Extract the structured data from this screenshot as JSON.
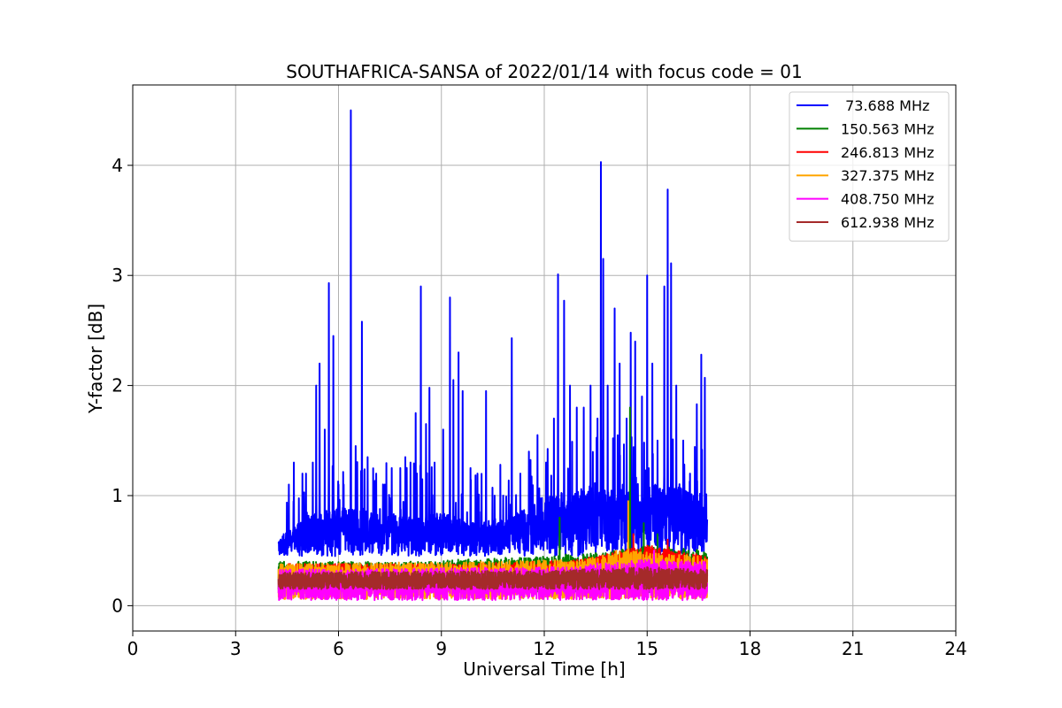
{
  "chart_data": {
    "type": "line",
    "title": "SOUTHAFRICA-SANSA of 2022/01/14 with focus code = 01",
    "xlabel": "Universal Time [h]",
    "ylabel": "Y-factor [dB]",
    "xlim": [
      0,
      24
    ],
    "ylim": [
      -0.23,
      4.73
    ],
    "xticks": [
      0,
      3,
      6,
      9,
      12,
      15,
      18,
      21,
      24
    ],
    "yticks": [
      0,
      1,
      2,
      3,
      4
    ],
    "xtick_labels": [
      "0",
      "3",
      "6",
      "9",
      "12",
      "15",
      "18",
      "21",
      "24"
    ],
    "ytick_labels": [
      "0",
      "1",
      "2",
      "3",
      "4"
    ],
    "grid": true,
    "legend_position": "top-right",
    "time_range_hours": [
      4.25,
      16.75
    ],
    "series": [
      {
        "name": " 73.688 MHz",
        "color": "#0000ff",
        "baseline_low": 0.45,
        "baseline_high": 1.05,
        "envelope": [
          [
            4.25,
            0.6
          ],
          [
            5,
            0.8
          ],
          [
            6,
            0.9
          ],
          [
            7,
            0.85
          ],
          [
            8,
            0.8
          ],
          [
            9,
            0.85
          ],
          [
            10,
            0.75
          ],
          [
            11,
            0.8
          ],
          [
            12,
            1.0
          ],
          [
            13,
            1.05
          ],
          [
            14,
            1.05
          ],
          [
            15,
            1.1
          ],
          [
            16,
            1.1
          ],
          [
            16.75,
            0.9
          ]
        ],
        "peaks": [
          [
            4.4,
            0.65
          ],
          [
            4.55,
            1.1
          ],
          [
            4.7,
            1.3
          ],
          [
            4.95,
            1.2
          ],
          [
            5.05,
            1.2
          ],
          [
            5.25,
            1.3
          ],
          [
            5.35,
            2.0
          ],
          [
            5.45,
            2.2
          ],
          [
            5.6,
            1.6
          ],
          [
            5.72,
            2.93
          ],
          [
            5.85,
            2.45
          ],
          [
            6.0,
            1.1
          ],
          [
            6.15,
            1.1
          ],
          [
            6.36,
            4.5
          ],
          [
            6.5,
            1.45
          ],
          [
            6.68,
            2.58
          ],
          [
            6.85,
            1.35
          ],
          [
            7.1,
            1.2
          ],
          [
            7.35,
            1.1
          ],
          [
            7.55,
            1.25
          ],
          [
            7.8,
            1.25
          ],
          [
            7.95,
            1.35
          ],
          [
            8.1,
            1.3
          ],
          [
            8.25,
            1.75
          ],
          [
            8.4,
            2.9
          ],
          [
            8.55,
            1.65
          ],
          [
            8.65,
            1.98
          ],
          [
            8.8,
            1.3
          ],
          [
            9.05,
            1.6
          ],
          [
            9.25,
            2.8
          ],
          [
            9.35,
            2.05
          ],
          [
            9.5,
            2.3
          ],
          [
            9.62,
            1.95
          ],
          [
            9.85,
            1.25
          ],
          [
            10.05,
            1.2
          ],
          [
            10.3,
            1.95
          ],
          [
            10.55,
            1.0
          ],
          [
            10.8,
            1.0
          ],
          [
            11.05,
            2.43
          ],
          [
            11.3,
            1.2
          ],
          [
            11.55,
            1.4
          ],
          [
            11.8,
            1.55
          ],
          [
            12.05,
            1.3
          ],
          [
            12.28,
            1.7
          ],
          [
            12.4,
            3.01
          ],
          [
            12.58,
            2.77
          ],
          [
            12.75,
            2.0
          ],
          [
            12.95,
            1.8
          ],
          [
            13.15,
            1.8
          ],
          [
            13.35,
            2.0
          ],
          [
            13.55,
            1.7
          ],
          [
            13.65,
            4.03
          ],
          [
            13.72,
            3.15
          ],
          [
            13.85,
            2.0
          ],
          [
            14.05,
            2.7
          ],
          [
            14.2,
            2.2
          ],
          [
            14.4,
            1.7
          ],
          [
            14.52,
            2.48
          ],
          [
            14.65,
            2.4
          ],
          [
            14.85,
            1.9
          ],
          [
            15.0,
            3.0
          ],
          [
            15.15,
            2.2
          ],
          [
            15.3,
            1.5
          ],
          [
            15.5,
            2.9
          ],
          [
            15.6,
            3.78
          ],
          [
            15.7,
            3.11
          ],
          [
            15.85,
            2.0
          ],
          [
            16.05,
            1.5
          ],
          [
            16.25,
            1.2
          ],
          [
            16.45,
            1.83
          ],
          [
            16.58,
            2.28
          ],
          [
            16.68,
            2.07
          ]
        ]
      },
      {
        "name": "150.563 MHz",
        "color": "#008000",
        "baseline_low": 0.12,
        "baseline_high": 0.42,
        "envelope": [
          [
            4.25,
            0.4
          ],
          [
            8,
            0.4
          ],
          [
            12,
            0.45
          ],
          [
            14,
            0.5
          ],
          [
            15,
            0.55
          ],
          [
            16.75,
            0.5
          ]
        ],
        "peaks": [
          [
            12.45,
            0.8
          ],
          [
            14.5,
            1.8
          ],
          [
            14.9,
            0.75
          ],
          [
            15.3,
            0.65
          ]
        ]
      },
      {
        "name": "246.813 MHz",
        "color": "#ff0000",
        "baseline_low": 0.15,
        "baseline_high": 0.4,
        "envelope": [
          [
            4.25,
            0.38
          ],
          [
            10,
            0.38
          ],
          [
            13,
            0.42
          ],
          [
            15,
            0.55
          ],
          [
            16.75,
            0.45
          ]
        ],
        "peaks": [
          [
            14.6,
            0.65
          ],
          [
            15.6,
            0.6
          ]
        ]
      },
      {
        "name": "327.375 MHz",
        "color": "#ffa500",
        "baseline_low": 0.06,
        "baseline_high": 0.4,
        "envelope": [
          [
            4.25,
            0.38
          ],
          [
            10,
            0.4
          ],
          [
            13,
            0.42
          ],
          [
            14.4,
            0.5
          ],
          [
            16.75,
            0.45
          ]
        ],
        "peaks": [
          [
            14.45,
            0.95
          ],
          [
            14.1,
            0.5
          ]
        ]
      },
      {
        "name": "408.750 MHz",
        "color": "#ff00ff",
        "baseline_low": 0.05,
        "baseline_high": 0.35,
        "envelope": [
          [
            4.25,
            0.33
          ],
          [
            12,
            0.35
          ],
          [
            15,
            0.42
          ],
          [
            16.75,
            0.4
          ]
        ],
        "peaks": [
          [
            15.2,
            0.5
          ]
        ]
      },
      {
        "name": "612.938 MHz",
        "color": "#a52a2a",
        "baseline_low": 0.15,
        "baseline_high": 0.33,
        "envelope": [
          [
            4.25,
            0.3
          ],
          [
            12,
            0.32
          ],
          [
            15,
            0.35
          ],
          [
            16.75,
            0.33
          ]
        ],
        "peaks": []
      }
    ]
  }
}
